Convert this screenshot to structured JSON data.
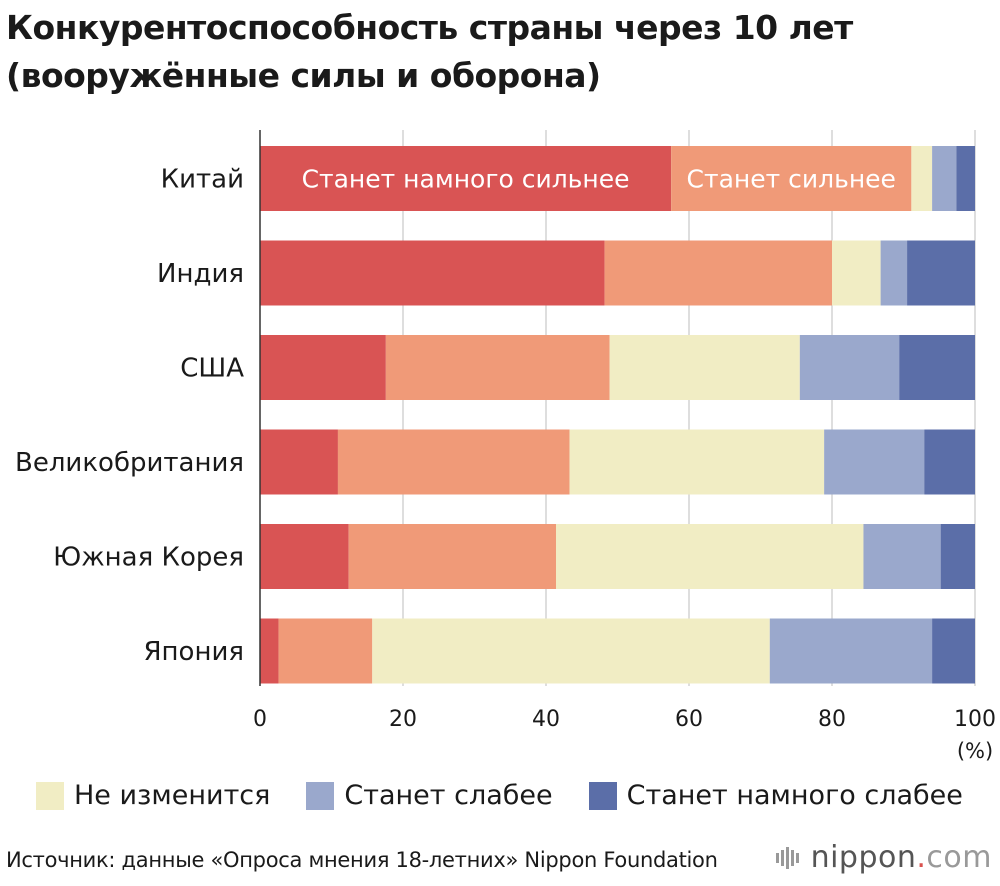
{
  "title": {
    "line1": "Конкурентоспособность страны через 10 лет",
    "line2": "(вооружённые силы и оборона)"
  },
  "chart_data": {
    "type": "bar",
    "orientation": "horizontal",
    "stacked": true,
    "categories": [
      "Китай",
      "Индия",
      "США",
      "Великобритания",
      "Южная Корея",
      "Япония"
    ],
    "series": [
      {
        "name": "Станет намного сильнее",
        "color": "#d95454",
        "values": [
          57.5,
          48.2,
          17.6,
          10.9,
          12.4,
          2.6
        ]
      },
      {
        "name": "Станет сильнее",
        "color": "#f09a78",
        "values": [
          33.6,
          31.8,
          31.3,
          32.4,
          29.0,
          13.1
        ]
      },
      {
        "name": "Не изменится",
        "color": "#f1edc4",
        "values": [
          2.9,
          6.8,
          26.6,
          35.6,
          43.0,
          55.6
        ]
      },
      {
        "name": "Станет слабее",
        "color": "#9aa8cc",
        "values": [
          3.4,
          3.7,
          13.9,
          14.0,
          10.8,
          22.7
        ]
      },
      {
        "name": "Станет намного слабее",
        "color": "#5b6ea8",
        "values": [
          2.6,
          9.5,
          10.6,
          7.1,
          4.8,
          6.0
        ]
      }
    ],
    "inline_labels": {
      "category": "Китай",
      "labels": [
        "Станет намного сильнее",
        "Станет сильнее"
      ]
    },
    "x_ticks": [
      "0",
      "20",
      "40",
      "60",
      "80",
      "100"
    ],
    "xlim": [
      0,
      100
    ],
    "unit_label": "(%)",
    "grid": true
  },
  "legend": [
    {
      "label": "Не изменится",
      "color": "#f1edc4"
    },
    {
      "label": "Станет слабее",
      "color": "#9aa8cc"
    },
    {
      "label": "Станет намного слабее",
      "color": "#5b6ea8"
    }
  ],
  "source": "Источник: данные «Опроса мнения 18-летних» Nippon Foundation",
  "brand": {
    "name": "nippon",
    "dot": ".",
    "tld": "com"
  }
}
